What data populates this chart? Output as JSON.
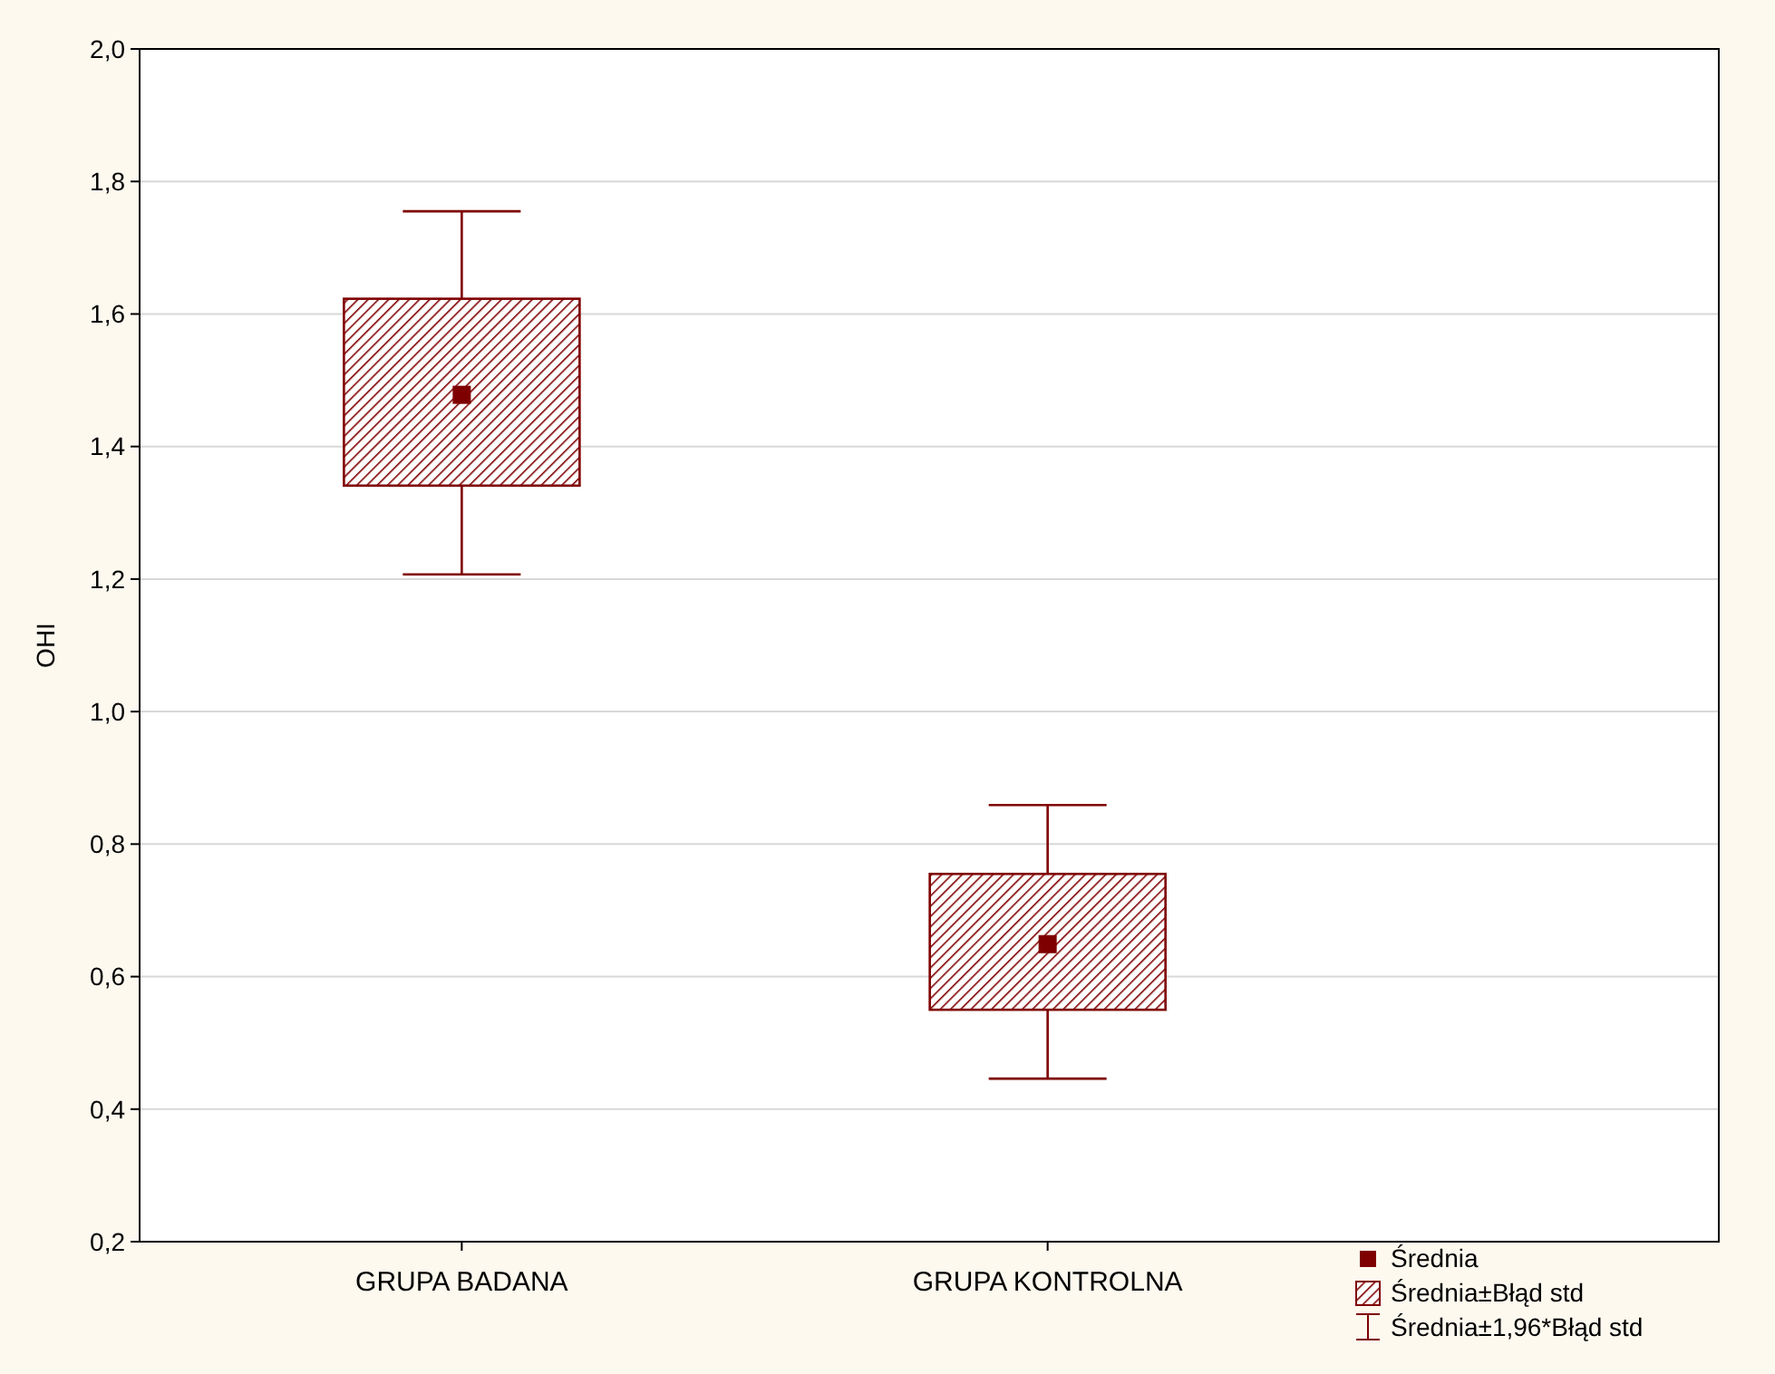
{
  "chart_data": {
    "type": "box",
    "ylabel": "OHI",
    "categories": [
      "GRUPA BADANA",
      "GRUPA KONTROLNA"
    ],
    "color": "#7f0000",
    "boxes": [
      {
        "low": 1.207,
        "q1": 1.341,
        "median": 1.478,
        "q3": 1.623,
        "high": 1.755
      },
      {
        "low": 0.446,
        "q1": 0.55,
        "median": 0.649,
        "q3": 0.755,
        "high": 0.859
      }
    ],
    "ylim": [
      0.2,
      2.0
    ],
    "yticks": [
      {
        "value": 0.2,
        "label": "0,2"
      },
      {
        "value": 0.4,
        "label": "0,4"
      },
      {
        "value": 0.6,
        "label": "0,6"
      },
      {
        "value": 0.8,
        "label": "0,8"
      },
      {
        "value": 1.0,
        "label": "1,0"
      },
      {
        "value": 1.2,
        "label": "1,2"
      },
      {
        "value": 1.4,
        "label": "1,4"
      },
      {
        "value": 1.6,
        "label": "1,6"
      },
      {
        "value": 1.8,
        "label": "1,8"
      },
      {
        "value": 2.0,
        "label": "2,0"
      }
    ],
    "grid": "y",
    "annotations": [
      "Średnia",
      "Średnia±Błąd std",
      "Średnia±1,96*Błąd std"
    ]
  }
}
